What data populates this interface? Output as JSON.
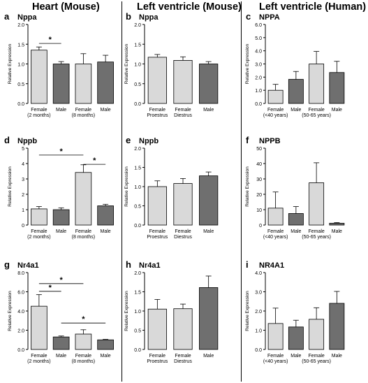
{
  "figure": {
    "columns": [
      {
        "title": "Heart (Mouse)"
      },
      {
        "title": "Left ventricle (Mouse)"
      },
      {
        "title": "Left ventricle (Human)"
      }
    ]
  },
  "colors": {
    "light_bar": "#d9d9d9",
    "dark_bar": "#6f6f6f",
    "text": "#000000"
  },
  "chart_data": [
    {
      "panel": "a",
      "title": "Nppa",
      "type": "bar",
      "ylabel": "Relative Expression",
      "ylim": [
        0,
        2.0
      ],
      "yticks": [
        0,
        0.5,
        1.0,
        1.5,
        2.0
      ],
      "tick_format": "0.0",
      "categories": [
        [
          "Female",
          "(2 months)"
        ],
        [
          "Male",
          ""
        ],
        [
          "Female",
          "(8 months)"
        ],
        [
          "Male",
          ""
        ]
      ],
      "values": [
        1.35,
        1.0,
        1.0,
        1.05
      ],
      "errors": [
        0.08,
        0.06,
        0.26,
        0.17
      ],
      "fill": [
        "light",
        "dark",
        "light",
        "dark"
      ],
      "significance": [
        {
          "from": 0,
          "to": 1,
          "y": 1.52,
          "label": "*"
        }
      ]
    },
    {
      "panel": "b",
      "title": "Nppa",
      "type": "bar",
      "ylabel": "Relative Expression",
      "ylim": [
        0,
        2.0
      ],
      "yticks": [
        0,
        0.5,
        1.0,
        1.5,
        2.0
      ],
      "tick_format": "0.0",
      "categories": [
        [
          "Female",
          "Proestrus"
        ],
        [
          "Female",
          "Diestrus"
        ],
        [
          "Male",
          ""
        ]
      ],
      "values": [
        1.17,
        1.09,
        1.0
      ],
      "errors": [
        0.07,
        0.09,
        0.06
      ],
      "fill": [
        "light",
        "light",
        "dark"
      ],
      "significance": []
    },
    {
      "panel": "c",
      "title": "NPPA",
      "type": "bar",
      "ylabel": "Relative Expression",
      "ylim": [
        0,
        6.0
      ],
      "yticks": [
        0,
        1,
        2,
        3,
        4,
        5,
        6
      ],
      "tick_format": "0.0",
      "categories": [
        [
          "Female",
          "(<40 years)"
        ],
        [
          "Male",
          ""
        ],
        [
          "Female",
          "(50-65 years)"
        ],
        [
          "Male",
          ""
        ]
      ],
      "values": [
        1.0,
        1.83,
        3.0,
        2.35
      ],
      "errors": [
        0.45,
        0.6,
        0.95,
        0.85
      ],
      "fill": [
        "light",
        "dark",
        "light",
        "dark"
      ],
      "significance": []
    },
    {
      "panel": "d",
      "title": "Nppb",
      "type": "bar",
      "ylabel": "Relative Expression",
      "ylim": [
        0,
        5
      ],
      "yticks": [
        0,
        1,
        2,
        3,
        4,
        5
      ],
      "tick_format": "0",
      "categories": [
        [
          "Female",
          "(2 months)"
        ],
        [
          "Male",
          ""
        ],
        [
          "Female",
          "(8 months)"
        ],
        [
          "Male",
          ""
        ]
      ],
      "values": [
        1.05,
        1.0,
        3.42,
        1.25
      ],
      "errors": [
        0.15,
        0.12,
        0.5,
        0.1
      ],
      "fill": [
        "light",
        "dark",
        "light",
        "dark"
      ],
      "significance": [
        {
          "from": 0,
          "to": 2,
          "y": 4.55,
          "label": "*"
        },
        {
          "from": 2,
          "to": 3,
          "y": 3.95,
          "label": "*"
        }
      ]
    },
    {
      "panel": "e",
      "title": "Nppb",
      "type": "bar",
      "ylabel": "Relative Expression",
      "ylim": [
        0,
        2.0
      ],
      "yticks": [
        0,
        0.5,
        1.0,
        1.5,
        2.0
      ],
      "tick_format": "0.0",
      "categories": [
        [
          "Female",
          "Proestrus"
        ],
        [
          "Female",
          "Diestrus"
        ],
        [
          "Male",
          ""
        ]
      ],
      "values": [
        1.0,
        1.08,
        1.28
      ],
      "errors": [
        0.15,
        0.13,
        0.1
      ],
      "fill": [
        "light",
        "light",
        "dark"
      ],
      "significance": []
    },
    {
      "panel": "f",
      "title": "NPPB",
      "type": "bar",
      "ylabel": "Relative Expression",
      "ylim": [
        0,
        50
      ],
      "yticks": [
        0,
        10,
        20,
        30,
        40,
        50
      ],
      "tick_format": "0",
      "categories": [
        [
          "Female",
          "(<40 years)"
        ],
        [
          "Male",
          ""
        ],
        [
          "Female",
          "(50-65 years)"
        ],
        [
          "Male",
          ""
        ]
      ],
      "values": [
        11.0,
        7.5,
        27.5,
        1.2
      ],
      "errors": [
        10.5,
        4.5,
        13.0,
        0.4
      ],
      "fill": [
        "light",
        "dark",
        "light",
        "dark"
      ],
      "significance": []
    },
    {
      "panel": "g",
      "title": "Nr4a1",
      "type": "bar",
      "ylabel": "Relative Expression",
      "ylim": [
        0,
        8.0
      ],
      "yticks": [
        0,
        2,
        4,
        6,
        8
      ],
      "tick_format": "0.0",
      "categories": [
        [
          "Female",
          "(2 months)"
        ],
        [
          "Male",
          ""
        ],
        [
          "Female",
          "(8 months)"
        ],
        [
          "Male",
          ""
        ]
      ],
      "values": [
        4.5,
        1.3,
        1.6,
        1.0
      ],
      "errors": [
        1.2,
        0.1,
        0.45,
        0.05
      ],
      "fill": [
        "light",
        "dark",
        "light",
        "dark"
      ],
      "significance": [
        {
          "from": 0,
          "to": 2,
          "y": 6.85,
          "label": "*"
        },
        {
          "from": 0,
          "to": 1,
          "y": 6.05,
          "label": "*"
        },
        {
          "from": 1,
          "to": 3,
          "y": 2.75,
          "label": "*"
        }
      ]
    },
    {
      "panel": "h",
      "title": "Nr4a1",
      "type": "bar",
      "ylabel": "Relative Expression",
      "ylim": [
        0,
        2.0
      ],
      "yticks": [
        0,
        0.5,
        1.0,
        1.5,
        2.0
      ],
      "tick_format": "0.0",
      "categories": [
        [
          "Female",
          "Proestrus"
        ],
        [
          "Female",
          "Diestrus"
        ],
        [
          "Male",
          ""
        ]
      ],
      "values": [
        1.05,
        1.06,
        1.61
      ],
      "errors": [
        0.25,
        0.12,
        0.3
      ],
      "fill": [
        "light",
        "light",
        "dark"
      ],
      "significance": []
    },
    {
      "panel": "i",
      "title": "NR4A1",
      "type": "bar",
      "ylabel": "Relative Expression",
      "ylim": [
        0,
        4.0
      ],
      "yticks": [
        0,
        1,
        2,
        3,
        4
      ],
      "tick_format": "0.0",
      "categories": [
        [
          "Female",
          "(<40 years)"
        ],
        [
          "Male",
          ""
        ],
        [
          "Female",
          "(50-65 years)"
        ],
        [
          "Male",
          ""
        ]
      ],
      "values": [
        1.35,
        1.17,
        1.57,
        2.4
      ],
      "errors": [
        0.8,
        0.35,
        0.6,
        0.62
      ],
      "fill": [
        "light",
        "dark",
        "light",
        "dark"
      ],
      "significance": []
    }
  ]
}
